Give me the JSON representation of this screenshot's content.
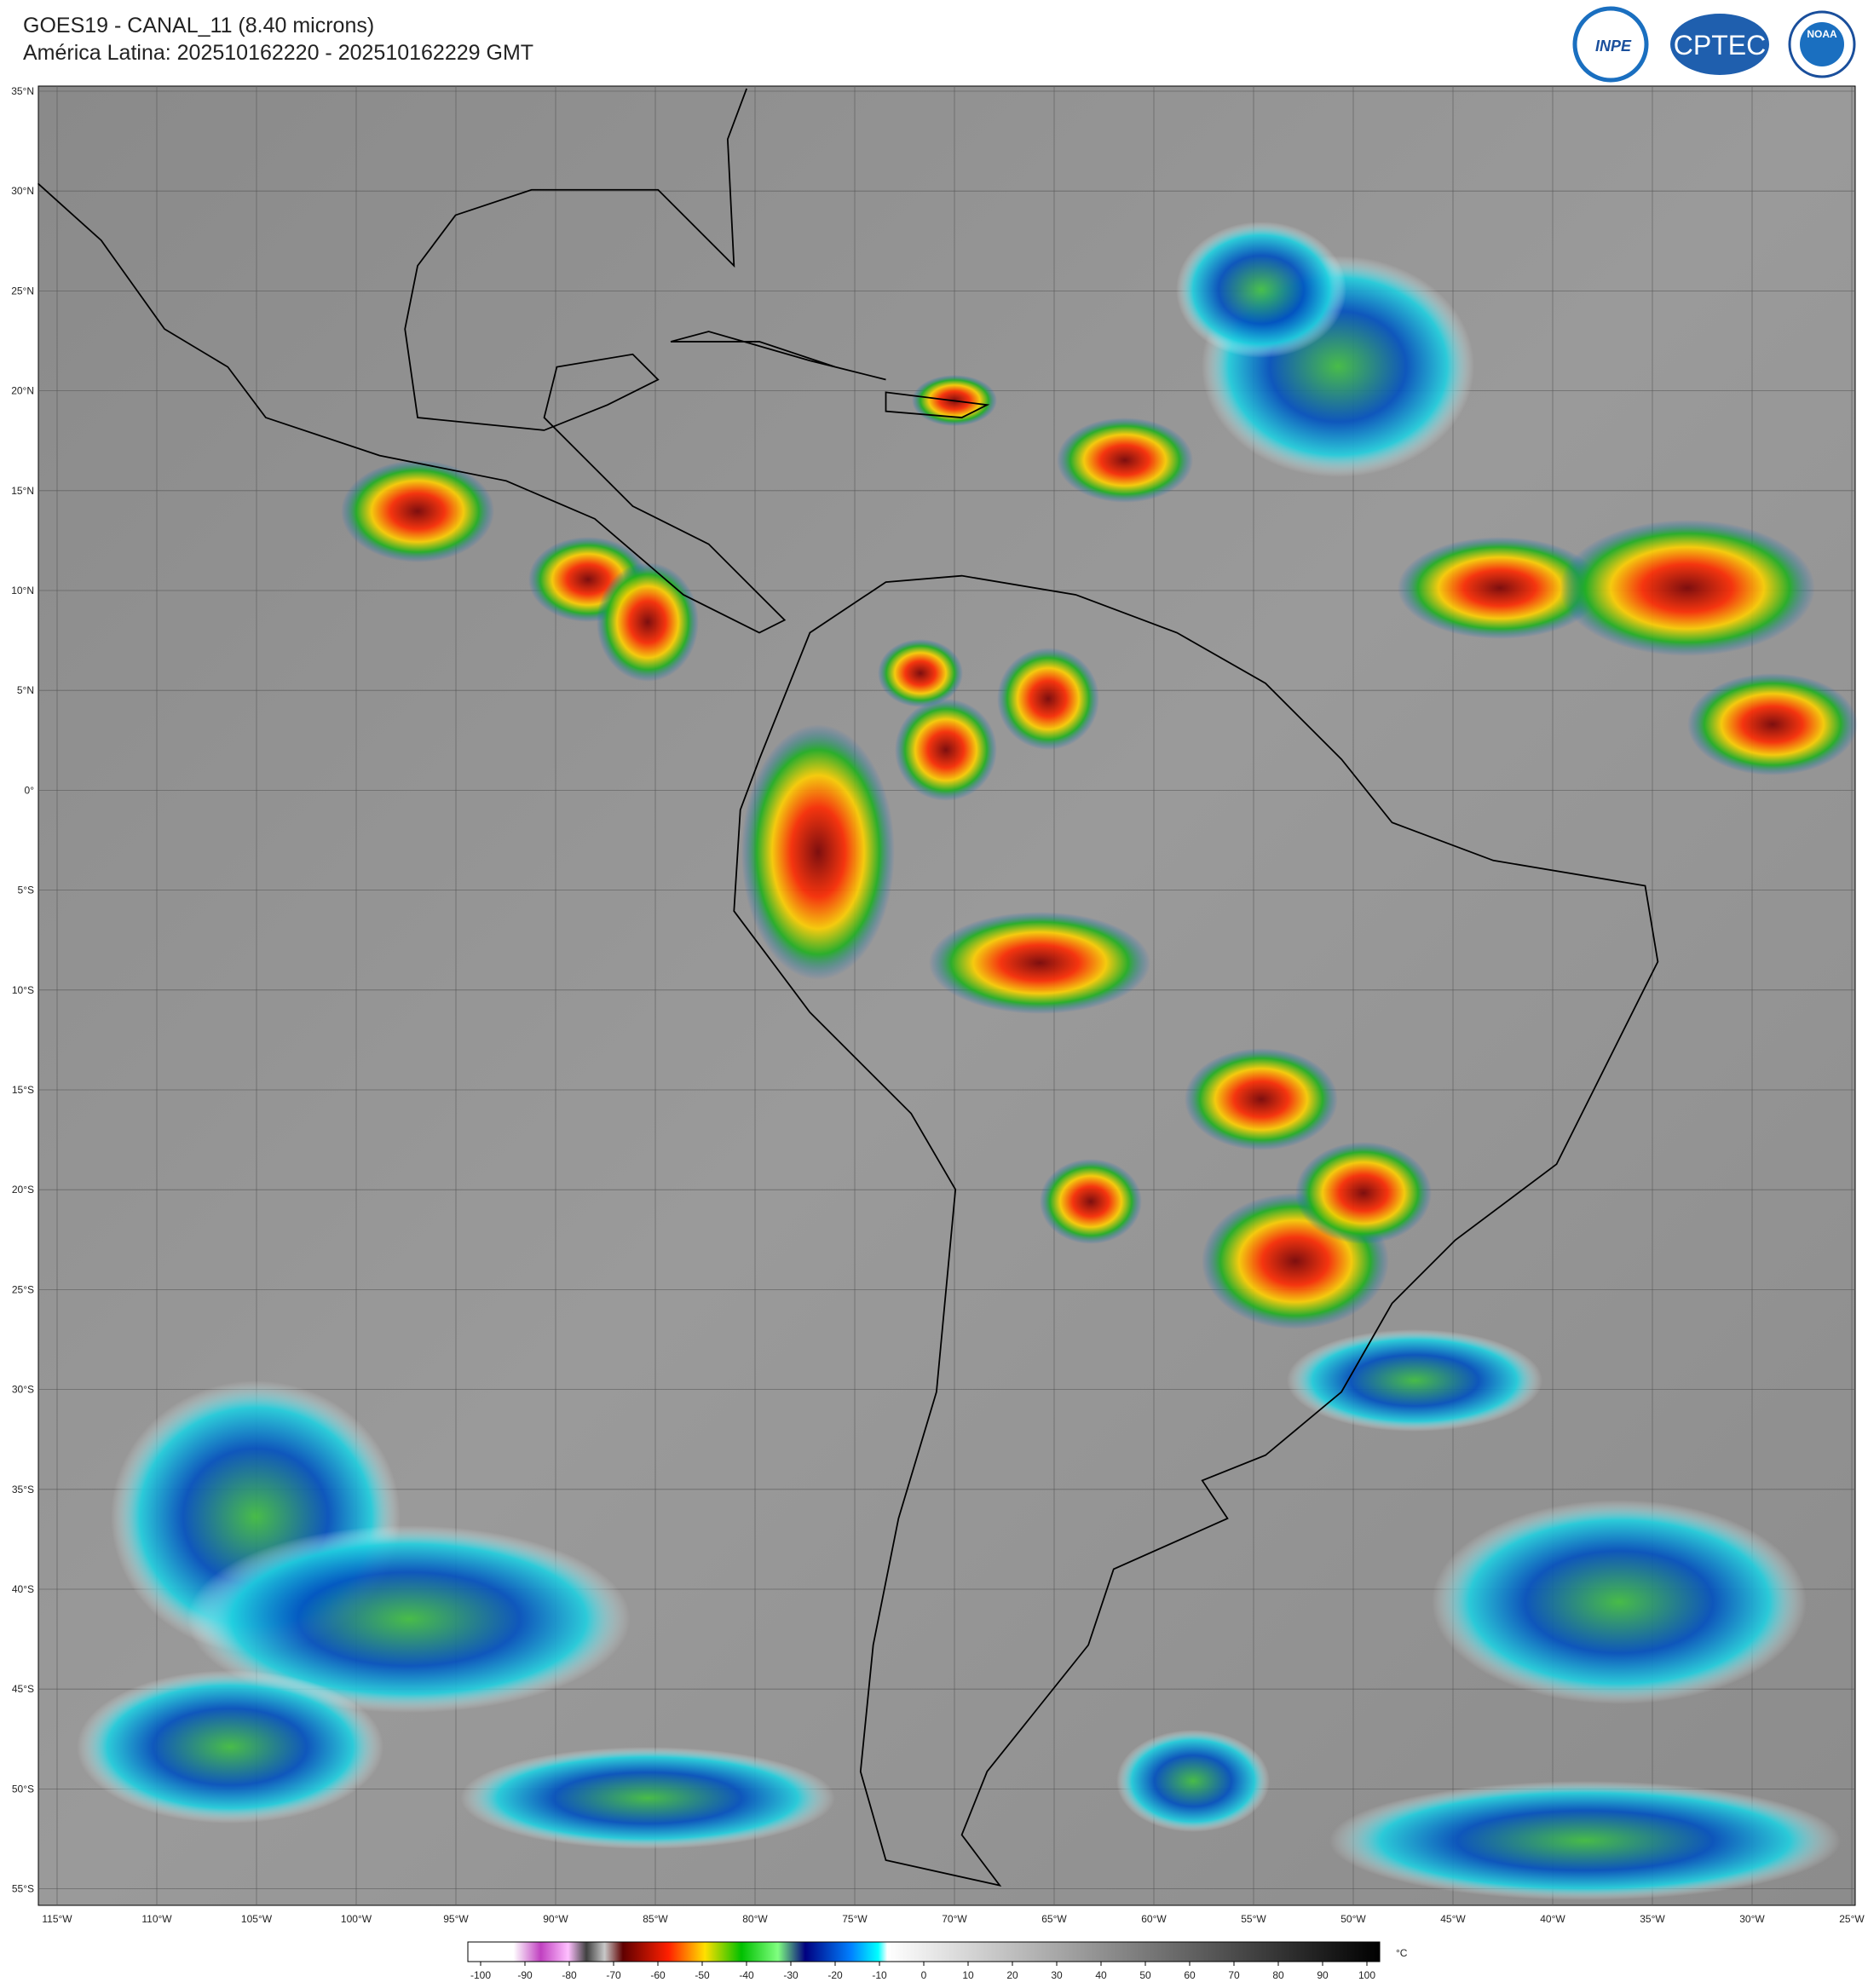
{
  "header": {
    "title": "GOES19 - CANAL_11 (8.40 microns)",
    "subtitle": "América Latina: 202510162220 - 202510162229 GMT"
  },
  "logos": [
    "INPE",
    "CPTEC",
    "NOAA"
  ],
  "map": {
    "lat_labels": [
      "35°N",
      "30°N",
      "25°N",
      "20°N",
      "15°N",
      "10°N",
      "5°N",
      "0°",
      "5°S",
      "10°S",
      "15°S",
      "20°S",
      "25°S",
      "30°S",
      "35°S",
      "40°S",
      "45°S",
      "50°S",
      "55°S"
    ],
    "lon_labels": [
      "115°W",
      "110°W",
      "105°W",
      "100°W",
      "95°W",
      "90°W",
      "85°W",
      "80°W",
      "75°W",
      "70°W",
      "65°W",
      "60°W",
      "55°W",
      "50°W",
      "45°W",
      "40°W",
      "35°W",
      "30°W",
      "25°W"
    ]
  },
  "colorbar": {
    "ticks": [
      -100,
      -90,
      -80,
      -70,
      -60,
      -50,
      -40,
      -30,
      -20,
      -10,
      0,
      10,
      20,
      30,
      40,
      50,
      60,
      70,
      80,
      90,
      100
    ],
    "unit": "°C"
  }
}
